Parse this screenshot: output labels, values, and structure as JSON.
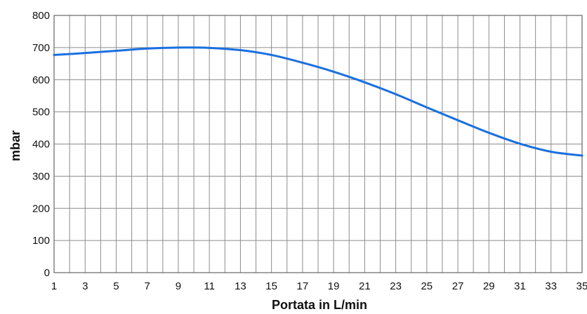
{
  "chart_data": {
    "type": "line",
    "title": "",
    "xlabel": "Portata in L/min",
    "ylabel": "mbar",
    "xlim": [
      1,
      35
    ],
    "ylim": [
      0,
      800
    ],
    "x_ticks": [
      1,
      3,
      5,
      7,
      9,
      11,
      13,
      15,
      17,
      19,
      21,
      23,
      25,
      27,
      29,
      31,
      33,
      35
    ],
    "y_ticks": [
      0,
      100,
      200,
      300,
      400,
      500,
      600,
      700,
      800
    ],
    "grid": true,
    "series": [
      {
        "color": "#1a6fe0",
        "x": [
          1,
          3,
          5,
          7,
          9,
          11,
          13,
          15,
          17,
          19,
          21,
          23,
          25,
          27,
          29,
          31,
          33,
          35
        ],
        "y": [
          677,
          683,
          690,
          697,
          700,
          699,
          692,
          677,
          653,
          625,
          592,
          555,
          514,
          474,
          435,
          401,
          376,
          364
        ]
      }
    ]
  }
}
